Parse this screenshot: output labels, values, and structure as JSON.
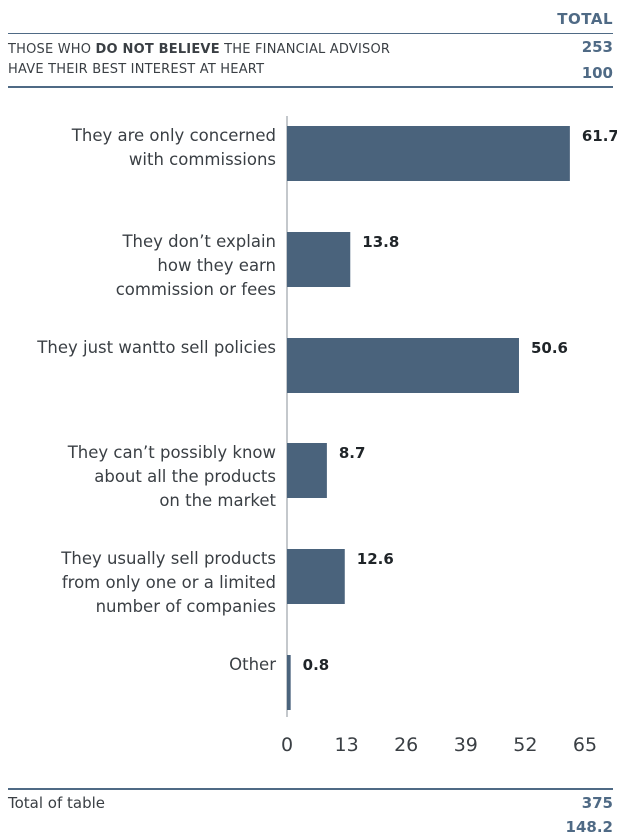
{
  "header": {
    "total_label": "TOTAL",
    "question_line1_pre": "THOSE WHO ",
    "question_line1_bold": "DO NOT BELIEVE",
    "question_line1_post": " THE FINANCIAL ADVISOR",
    "question_line2": "HAVE THEIR BEST INTEREST AT HEART",
    "base_count": "253",
    "base_pct": "100"
  },
  "chart_data": {
    "type": "bar",
    "orientation": "horizontal",
    "categories": [
      [
        "They are only concerned",
        "with commissions"
      ],
      [
        "They don’t explain",
        "how they earn",
        "commission or fees"
      ],
      [
        "They just wantto sell policies"
      ],
      [
        "They can’t possibly know",
        "about all the products",
        "on the market"
      ],
      [
        "They usually sell products",
        "from only one or a limited",
        "number of companies"
      ],
      [
        "Other"
      ]
    ],
    "values": [
      61.7,
      13.8,
      50.6,
      8.7,
      12.6,
      0.8
    ],
    "value_labels": [
      "61.7",
      "13.8",
      "50.6",
      "8.7",
      "12.6",
      "0.8"
    ],
    "xlim": [
      0,
      65
    ],
    "x_ticks": [
      "0",
      "13",
      "26",
      "39",
      "52",
      "65"
    ],
    "grid": false,
    "bar_color": "#4a637c"
  },
  "footer": {
    "label": "Total of table",
    "count": "375",
    "pct": "148.2"
  }
}
